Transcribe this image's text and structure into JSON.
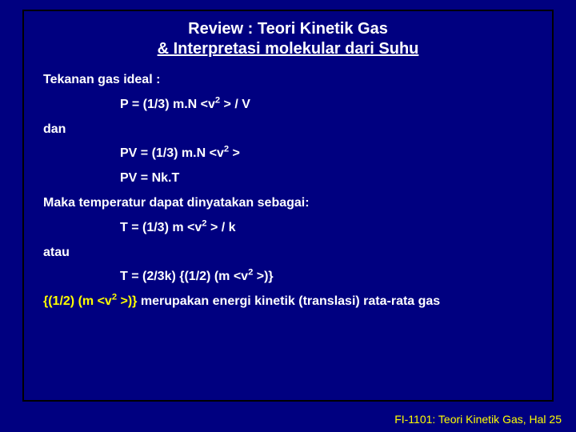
{
  "colors": {
    "background": "#000080",
    "text": "#ffffff",
    "accent": "#ffff00",
    "border": "#000000"
  },
  "title": {
    "line1": "Review : Teori Kinetik Gas",
    "line2": "& Interpretasi molekular dari Suhu"
  },
  "lines": {
    "l1": "Tekanan gas ideal :",
    "l3": "dan",
    "l7": "Maka temperatur dapat dinyatakan sebagai:",
    "l9": "atau"
  },
  "eq": {
    "p_pre": "P = (1/3) m.N <v",
    "p_post": " > / V",
    "pv_pre": "PV = (1/3) m.N <v",
    "pv_post": " >",
    "nkT": "PV = Nk.T",
    "t1_pre": "T = (1/3) m <v",
    "t1_post": " > / k",
    "t2_pre": "T = (2/3k) {(1/2) (m <v",
    "t2_post": " >)}",
    "expl_pre": "{(1/2) (m <v",
    "expl_post": " >)}",
    "expl_tail": " merupakan energi kinetik (translasi) rata-rata gas",
    "sup": "2"
  },
  "footer": "FI-1101: Teori Kinetik Gas, Hal 25"
}
